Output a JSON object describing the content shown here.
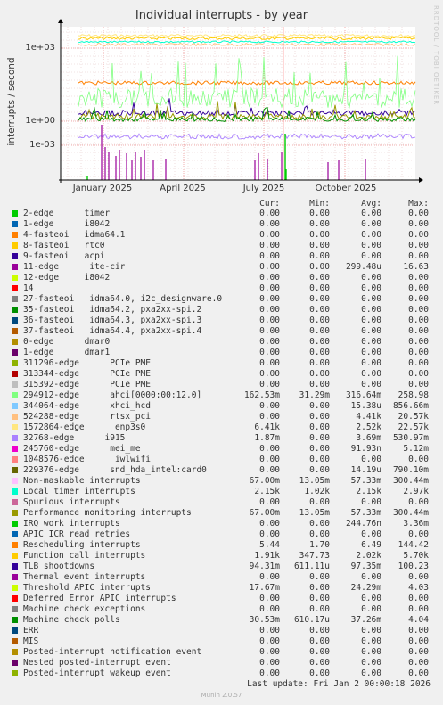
{
  "chart_data": {
    "type": "line",
    "title": "Individual interrupts - by year",
    "ylabel": "interrupts / second",
    "yscale": "log",
    "yticks": [
      "1e+03",
      "1e+00",
      "1e-03"
    ],
    "xticks": [
      "January 2025",
      "April 2025",
      "July 2025",
      "October 2025"
    ],
    "grid": true,
    "headers": [
      "Cur:",
      "Min:",
      "Avg:",
      "Max:"
    ],
    "series": [
      {
        "name": "2-edge      timer",
        "color": "#00cc00",
        "cur": "0.00",
        "min": "0.00",
        "avg": "0.00",
        "max": "0.00"
      },
      {
        "name": "1-edge      i8042",
        "color": "#0066b3",
        "cur": "0.00",
        "min": "0.00",
        "avg": "0.00",
        "max": "0.00"
      },
      {
        "name": "4-fasteoi   idma64.1",
        "color": "#ff8000",
        "cur": "0.00",
        "min": "0.00",
        "avg": "0.00",
        "max": "0.00"
      },
      {
        "name": "8-fasteoi   rtc0",
        "color": "#ffcc00",
        "cur": "0.00",
        "min": "0.00",
        "avg": "0.00",
        "max": "0.00"
      },
      {
        "name": "9-fasteoi   acpi",
        "color": "#330099",
        "cur": "0.00",
        "min": "0.00",
        "avg": "0.00",
        "max": "0.00"
      },
      {
        "name": "11-edge      ite-cir",
        "color": "#990099",
        "cur": "0.00",
        "min": "0.00",
        "avg": "299.48u",
        "max": "16.63"
      },
      {
        "name": "12-edge     i8042",
        "color": "#ccff00",
        "cur": "0.00",
        "min": "0.00",
        "avg": "0.00",
        "max": "0.00"
      },
      {
        "name": "14",
        "color": "#ff0000",
        "cur": "0.00",
        "min": "0.00",
        "avg": "0.00",
        "max": "0.00"
      },
      {
        "name": "27-fasteoi   idma64.0, i2c_designware.0",
        "color": "#808080",
        "cur": "0.00",
        "min": "0.00",
        "avg": "0.00",
        "max": "0.00"
      },
      {
        "name": "35-fasteoi   idma64.2, pxa2xx-spi.2",
        "color": "#008f00",
        "cur": "0.00",
        "min": "0.00",
        "avg": "0.00",
        "max": "0.00"
      },
      {
        "name": "36-fasteoi   idma64.3, pxa2xx-spi.3",
        "color": "#00487d",
        "cur": "0.00",
        "min": "0.00",
        "avg": "0.00",
        "max": "0.00"
      },
      {
        "name": "37-fasteoi   idma64.4, pxa2xx-spi.4",
        "color": "#b35a00",
        "cur": "0.00",
        "min": "0.00",
        "avg": "0.00",
        "max": "0.00"
      },
      {
        "name": "0-edge      dmar0",
        "color": "#b38f00",
        "cur": "0.00",
        "min": "0.00",
        "avg": "0.00",
        "max": "0.00"
      },
      {
        "name": "1-edge      dmar1",
        "color": "#6b006b",
        "cur": "0.00",
        "min": "0.00",
        "avg": "0.00",
        "max": "0.00"
      },
      {
        "name": "311296-edge      PCIe PME",
        "color": "#8fb300",
        "cur": "0.00",
        "min": "0.00",
        "avg": "0.00",
        "max": "0.00"
      },
      {
        "name": "313344-edge      PCIe PME",
        "color": "#b30000",
        "cur": "0.00",
        "min": "0.00",
        "avg": "0.00",
        "max": "0.00"
      },
      {
        "name": "315392-edge      PCIe PME",
        "color": "#bebebe",
        "cur": "0.00",
        "min": "0.00",
        "avg": "0.00",
        "max": "0.00"
      },
      {
        "name": "294912-edge      ahci[0000:00:12.0]",
        "color": "#80ff80",
        "cur": "162.53m",
        "min": "31.29m",
        "avg": "316.64m",
        "max": "258.98"
      },
      {
        "name": "344064-edge      xhci_hcd",
        "color": "#80c9ff",
        "cur": "0.00",
        "min": "0.00",
        "avg": "15.38u",
        "max": "856.66m"
      },
      {
        "name": "524288-edge      rtsx_pci",
        "color": "#ffc080",
        "cur": "0.00",
        "min": "0.00",
        "avg": "4.41k",
        "max": "20.57k"
      },
      {
        "name": "1572864-edge      enp3s0",
        "color": "#ffe680",
        "cur": "6.41k",
        "min": "0.00",
        "avg": "2.52k",
        "max": "22.57k"
      },
      {
        "name": "32768-edge      i915",
        "color": "#aa80ff",
        "cur": "1.87m",
        "min": "0.00",
        "avg": "3.69m",
        "max": "530.97m"
      },
      {
        "name": "245760-edge      mei_me",
        "color": "#ee00cc",
        "cur": "0.00",
        "min": "0.00",
        "avg": "91.93n",
        "max": "5.12m"
      },
      {
        "name": "1048576-edge      iwlwifi",
        "color": "#ff8080",
        "cur": "0.00",
        "min": "0.00",
        "avg": "0.00",
        "max": "0.00"
      },
      {
        "name": "229376-edge      snd_hda_intel:card0",
        "color": "#666600",
        "cur": "0.00",
        "min": "0.00",
        "avg": "14.19u",
        "max": "790.10m"
      },
      {
        "name": "Non-maskable interrupts",
        "color": "#ffbfff",
        "cur": "67.00m",
        "min": "13.05m",
        "avg": "57.33m",
        "max": "300.44m"
      },
      {
        "name": "Local timer interrupts",
        "color": "#00ffcc",
        "cur": "2.15k",
        "min": "1.02k",
        "avg": "2.15k",
        "max": "2.97k"
      },
      {
        "name": "Spurious interrupts",
        "color": "#cc6699",
        "cur": "0.00",
        "min": "0.00",
        "avg": "0.00",
        "max": "0.00"
      },
      {
        "name": "Performance monitoring interrupts",
        "color": "#999900",
        "cur": "67.00m",
        "min": "13.05m",
        "avg": "57.33m",
        "max": "300.44m"
      },
      {
        "name": "IRQ work interrupts",
        "color": "#00cc00",
        "cur": "0.00",
        "min": "0.00",
        "avg": "244.76n",
        "max": "3.36m"
      },
      {
        "name": "APIC ICR read retries",
        "color": "#0066b3",
        "cur": "0.00",
        "min": "0.00",
        "avg": "0.00",
        "max": "0.00"
      },
      {
        "name": "Rescheduling interrupts",
        "color": "#ff8000",
        "cur": "5.44",
        "min": "1.70",
        "avg": "6.49",
        "max": "144.42"
      },
      {
        "name": "Function call interrupts",
        "color": "#ffcc00",
        "cur": "1.91k",
        "min": "347.73",
        "avg": "2.02k",
        "max": "5.70k"
      },
      {
        "name": "TLB shootdowns",
        "color": "#330099",
        "cur": "94.31m",
        "min": "611.11u",
        "avg": "97.35m",
        "max": "100.23"
      },
      {
        "name": "Thermal event interrupts",
        "color": "#990099",
        "cur": "0.00",
        "min": "0.00",
        "avg": "0.00",
        "max": "0.00"
      },
      {
        "name": "Threshold APIC interrupts",
        "color": "#ccff00",
        "cur": "17.67m",
        "min": "0.00",
        "avg": "24.29m",
        "max": "4.03"
      },
      {
        "name": "Deferred Error APIC interrupts",
        "color": "#ff0000",
        "cur": "0.00",
        "min": "0.00",
        "avg": "0.00",
        "max": "0.00"
      },
      {
        "name": "Machine check exceptions",
        "color": "#808080",
        "cur": "0.00",
        "min": "0.00",
        "avg": "0.00",
        "max": "0.00"
      },
      {
        "name": "Machine check polls",
        "color": "#008f00",
        "cur": "30.53m",
        "min": "610.17u",
        "avg": "37.26m",
        "max": "4.04"
      },
      {
        "name": "ERR",
        "color": "#00487d",
        "cur": "0.00",
        "min": "0.00",
        "avg": "0.00",
        "max": "0.00"
      },
      {
        "name": "MIS",
        "color": "#b35a00",
        "cur": "0.00",
        "min": "0.00",
        "avg": "0.00",
        "max": "0.00"
      },
      {
        "name": "Posted-interrupt notification event",
        "color": "#b38f00",
        "cur": "0.00",
        "min": "0.00",
        "avg": "0.00",
        "max": "0.00"
      },
      {
        "name": "Nested posted-interrupt event",
        "color": "#6b006b",
        "cur": "0.00",
        "min": "0.00",
        "avg": "0.00",
        "max": "0.00"
      },
      {
        "name": "Posted-interrupt wakeup event",
        "color": "#8fb300",
        "cur": "0.00",
        "min": "0.00",
        "avg": "0.00",
        "max": "0.00"
      }
    ]
  },
  "side_text": "RRDTOOL / TOBI OETIKER",
  "last_update": "Last update: Fri Jan  2 00:00:18 2026",
  "footer": "Munin 2.0.57"
}
